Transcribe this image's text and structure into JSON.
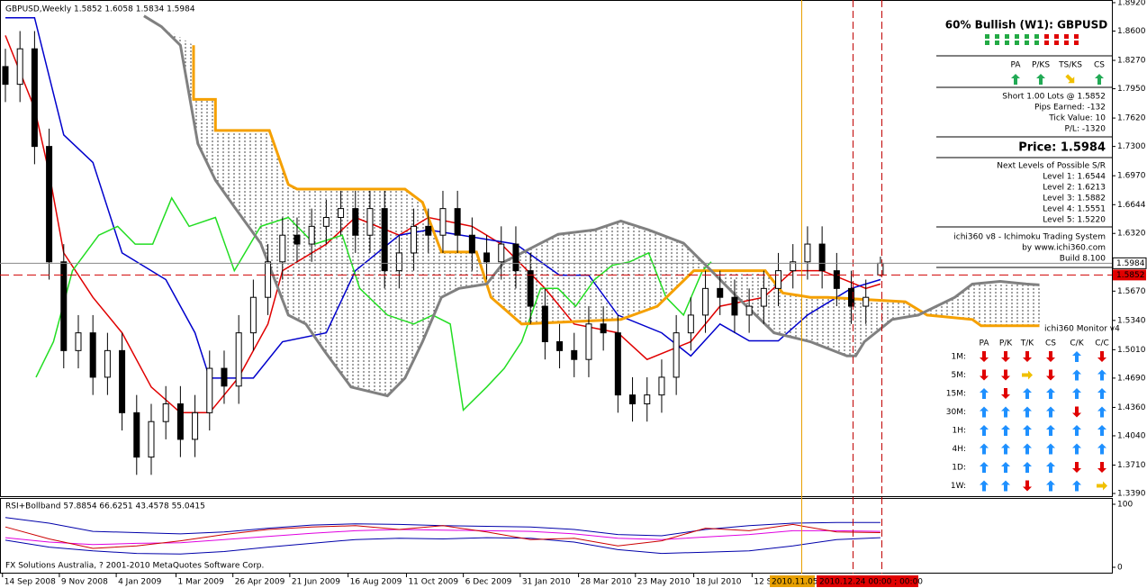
{
  "chart_data": [
    {
      "type": "candlestick",
      "title": "GBPUSD,Weekly  1.5852 1.6058 1.5834 1.5984",
      "open": [
        1.82,
        1.8,
        1.84,
        1.73,
        1.6,
        1.5,
        1.52,
        1.47,
        1.5,
        1.43,
        1.38,
        1.42,
        1.44,
        1.4,
        1.43,
        1.48,
        1.46,
        1.52,
        1.56,
        1.6,
        1.63,
        1.62,
        1.64,
        1.65,
        1.66,
        1.63,
        1.66,
        1.59,
        1.61,
        1.64,
        1.63,
        1.66,
        1.63,
        1.61,
        1.6,
        1.62,
        1.59,
        1.55,
        1.51,
        1.5,
        1.49,
        1.53,
        1.52,
        1.45,
        1.44,
        1.45,
        1.47,
        1.52,
        1.54,
        1.57,
        1.56,
        1.54,
        1.55,
        1.57,
        1.59,
        1.6,
        1.62,
        1.59,
        1.57,
        1.55,
        1.5852
      ],
      "high": [
        1.84,
        1.86,
        1.86,
        1.75,
        1.62,
        1.54,
        1.54,
        1.52,
        1.52,
        1.45,
        1.44,
        1.46,
        1.46,
        1.45,
        1.5,
        1.5,
        1.54,
        1.58,
        1.62,
        1.65,
        1.65,
        1.66,
        1.67,
        1.68,
        1.68,
        1.68,
        1.68,
        1.63,
        1.66,
        1.66,
        1.68,
        1.68,
        1.65,
        1.63,
        1.64,
        1.64,
        1.61,
        1.57,
        1.53,
        1.52,
        1.55,
        1.55,
        1.54,
        1.47,
        1.47,
        1.49,
        1.54,
        1.56,
        1.59,
        1.59,
        1.58,
        1.57,
        1.59,
        1.61,
        1.62,
        1.64,
        1.64,
        1.61,
        1.59,
        1.58,
        1.6058
      ],
      "low": [
        1.78,
        1.78,
        1.71,
        1.58,
        1.48,
        1.48,
        1.45,
        1.45,
        1.41,
        1.36,
        1.36,
        1.4,
        1.38,
        1.38,
        1.41,
        1.44,
        1.44,
        1.5,
        1.54,
        1.58,
        1.6,
        1.6,
        1.62,
        1.63,
        1.61,
        1.61,
        1.57,
        1.57,
        1.59,
        1.61,
        1.61,
        1.61,
        1.59,
        1.58,
        1.58,
        1.57,
        1.53,
        1.49,
        1.48,
        1.47,
        1.47,
        1.5,
        1.43,
        1.42,
        1.42,
        1.43,
        1.45,
        1.5,
        1.52,
        1.54,
        1.52,
        1.52,
        1.53,
        1.55,
        1.57,
        1.58,
        1.57,
        1.55,
        1.53,
        1.53,
        1.5834
      ],
      "close": [
        1.8,
        1.84,
        1.73,
        1.6,
        1.5,
        1.52,
        1.47,
        1.5,
        1.43,
        1.38,
        1.42,
        1.44,
        1.4,
        1.43,
        1.48,
        1.46,
        1.52,
        1.56,
        1.6,
        1.63,
        1.62,
        1.64,
        1.65,
        1.66,
        1.63,
        1.66,
        1.59,
        1.61,
        1.64,
        1.63,
        1.66,
        1.63,
        1.61,
        1.6,
        1.62,
        1.59,
        1.55,
        1.51,
        1.5,
        1.49,
        1.53,
        1.52,
        1.45,
        1.44,
        1.45,
        1.47,
        1.52,
        1.54,
        1.57,
        1.56,
        1.54,
        1.55,
        1.57,
        1.59,
        1.6,
        1.62,
        1.59,
        1.57,
        1.55,
        1.56,
        1.5984
      ],
      "lines": [
        {
          "color": "#e00000",
          "x": [
            0,
            2,
            3,
            4,
            6,
            8,
            10,
            12,
            14,
            16,
            18,
            19,
            22,
            24,
            27,
            29,
            32,
            34,
            37,
            39,
            42,
            44,
            47,
            49,
            52,
            54,
            56,
            59,
            60
          ],
          "values": [
            1.855,
            1.773,
            1.7,
            1.61,
            1.56,
            1.52,
            1.459,
            1.43,
            1.43,
            1.47,
            1.53,
            1.59,
            1.62,
            1.65,
            1.63,
            1.65,
            1.64,
            1.62,
            1.57,
            1.53,
            1.52,
            1.49,
            1.51,
            1.55,
            1.56,
            1.59,
            1.59,
            1.57,
            1.575
          ]
        },
        {
          "color": "#0000cc",
          "x": [
            0,
            2,
            4,
            6,
            8,
            11,
            13,
            14,
            17,
            19,
            22,
            24,
            27,
            29,
            35,
            38,
            40,
            42,
            45,
            47,
            49,
            51,
            53,
            55,
            58,
            60
          ],
          "values": [
            1.875,
            1.875,
            1.743,
            1.712,
            1.61,
            1.58,
            1.52,
            1.469,
            1.469,
            1.51,
            1.52,
            1.59,
            1.63,
            1.636,
            1.62,
            1.585,
            1.585,
            1.54,
            1.52,
            1.494,
            1.53,
            1.511,
            1.511,
            1.54,
            1.57,
            1.58
          ]
        },
        {
          "color": "#22dd22",
          "x": [
            2.1,
            3.3,
            4.6,
            6.4,
            7.7,
            8.9,
            10.1,
            11.4,
            12.6,
            14.4,
            15.7,
            17.5,
            19.4,
            21.2,
            23.1,
            24.3,
            26.2,
            28,
            29.3,
            30.5,
            31.4,
            33,
            34.2,
            35.4,
            36.7,
            37.9,
            39.1,
            40.4,
            41.6,
            42.8,
            44.1,
            45.3,
            46.5,
            47.8,
            48.4
          ],
          "values": [
            1.47,
            1.51,
            1.59,
            1.63,
            1.64,
            1.62,
            1.62,
            1.672,
            1.64,
            1.65,
            1.59,
            1.64,
            1.65,
            1.62,
            1.63,
            1.57,
            1.54,
            1.53,
            1.54,
            1.53,
            1.433,
            1.459,
            1.48,
            1.51,
            1.57,
            1.57,
            1.55,
            1.58,
            1.596,
            1.6,
            1.61,
            1.56,
            1.54,
            1.59,
            1.6
          ]
        },
        {
          "color": "#f5a000",
          "x": [
            12.9,
            12.9,
            14.4,
            14.4,
            18.1,
            19.4,
            20,
            27.4,
            28.6,
            29.9,
            32.3,
            33.3,
            35.4,
            42.2,
            44.7,
            47.2,
            52.1,
            53.3,
            55.2,
            56.4,
            61.7,
            63.2,
            66.3,
            66.9,
            70.9
          ],
          "values": [
            1.844,
            1.783,
            1.783,
            1.748,
            1.748,
            1.687,
            1.682,
            1.682,
            1.667,
            1.611,
            1.611,
            1.56,
            1.53,
            1.535,
            1.55,
            1.59,
            1.59,
            1.565,
            1.56,
            1.56,
            1.555,
            1.54,
            1.535,
            1.528,
            1.528
          ]
        },
        {
          "color": "#808080",
          "x": [
            9.5,
            10.7,
            12,
            13.2,
            14.4,
            15.7,
            17.5,
            19.4,
            20.6,
            21.9,
            23.7,
            26.2,
            27.4,
            28.6,
            29.9,
            31.1,
            33,
            34.2,
            35.4,
            37.9,
            40.4,
            42.2,
            44.1,
            46.5,
            48.4,
            50.2,
            52.7,
            55.2,
            57.7,
            58.3,
            58.9,
            60.8,
            62.6,
            65.1,
            66.3,
            68.2,
            70,
            70.9
          ],
          "values": [
            1.877,
            1.865,
            1.844,
            1.733,
            1.692,
            1.662,
            1.621,
            1.54,
            1.53,
            1.499,
            1.459,
            1.449,
            1.469,
            1.51,
            1.56,
            1.57,
            1.575,
            1.6,
            1.61,
            1.631,
            1.636,
            1.646,
            1.636,
            1.621,
            1.59,
            1.56,
            1.52,
            1.51,
            1.494,
            1.494,
            1.51,
            1.535,
            1.54,
            1.56,
            1.575,
            1.578,
            1.575,
            1.574
          ]
        }
      ],
      "current_price": {
        "value": 1.5984,
        "label": "1.5984"
      },
      "order_price": {
        "value": 1.5852,
        "label": "1.5852"
      },
      "xlim": [
        -0.37,
        75.87
      ],
      "ylim": [
        1.336,
        1.895
      ],
      "yticks": [
        {
          "value": 1.892,
          "label": "1.8920"
        },
        {
          "value": 1.86,
          "label": "1.8600"
        },
        {
          "value": 1.827,
          "label": "1.8270"
        },
        {
          "value": 1.795,
          "label": "1.7950"
        },
        {
          "value": 1.762,
          "label": "1.7620"
        },
        {
          "value": 1.73,
          "label": "1.7300"
        },
        {
          "value": 1.697,
          "label": "1.6970"
        },
        {
          "value": 1.6644,
          "label": "1.6644"
        },
        {
          "value": 1.632,
          "label": "1.6320"
        },
        {
          "value": 1.567,
          "label": "1.5670"
        },
        {
          "value": 1.534,
          "label": "1.5340"
        },
        {
          "value": 1.501,
          "label": "1.5010"
        },
        {
          "value": 1.469,
          "label": "1.4690"
        },
        {
          "value": 1.436,
          "label": "1.4360"
        },
        {
          "value": 1.404,
          "label": "1.4040"
        },
        {
          "value": 1.371,
          "label": "1.3710"
        },
        {
          "value": 1.339,
          "label": "1.3390"
        }
      ],
      "xticks": [
        {
          "value": -0.2,
          "label": "14 Sep 2008"
        },
        {
          "value": 3.7,
          "label": "9 Nov 2008"
        },
        {
          "value": 7.6,
          "label": "4 Jan 2009"
        },
        {
          "value": 11.7,
          "label": "1 Mar 2009"
        },
        {
          "value": 15.6,
          "label": "26 Apr 2009"
        },
        {
          "value": 19.5,
          "label": "21 Jun 2009"
        },
        {
          "value": 23.5,
          "label": "16 Aug 2009"
        },
        {
          "value": 27.5,
          "label": "11 Oct 2009"
        },
        {
          "value": 31.4,
          "label": "6 Dec 2009"
        },
        {
          "value": 35.3,
          "label": "31 Jan 2010"
        },
        {
          "value": 39.3,
          "label": "28 Mar 2010"
        },
        {
          "value": 43.2,
          "label": "23 May 2010"
        },
        {
          "value": 47.2,
          "label": "18 Jul 2010"
        },
        {
          "value": 51.2,
          "label": "12 S"
        }
      ]
    },
    {
      "type": "line",
      "title": "RSI+Bollband 57.8854 66.6251 43.4578 55.0415",
      "x": [
        0,
        3,
        6,
        9,
        12,
        15,
        18,
        21,
        24,
        27,
        30,
        33,
        36,
        39,
        42,
        45,
        48,
        51,
        54,
        57,
        60
      ],
      "series": [
        {
          "color": "#0000aa",
          "values": [
            79,
            70,
            57,
            55,
            53,
            56,
            62,
            67,
            69,
            68,
            66,
            65,
            64,
            60,
            52,
            50,
            60,
            66,
            70,
            71,
            71
          ]
        },
        {
          "color": "#0000aa",
          "values": [
            43,
            32,
            26,
            22,
            21,
            25,
            32,
            38,
            44,
            46,
            45,
            47,
            46,
            40,
            28,
            22,
            24,
            26,
            34,
            44,
            47
          ]
        },
        {
          "color": "#e000e0",
          "values": [
            47,
            40,
            36,
            38,
            39,
            44,
            49,
            54,
            58,
            60,
            59,
            58,
            57,
            53,
            46,
            44,
            48,
            52,
            58,
            58,
            57
          ]
        },
        {
          "color": "#cc0000",
          "values": [
            64,
            45,
            30,
            34,
            42,
            52,
            60,
            64,
            66,
            60,
            66,
            56,
            44,
            46,
            34,
            42,
            62,
            58,
            68,
            56,
            55
          ]
        }
      ],
      "xlim": [
        -0.37,
        75.87
      ],
      "ylim": [
        -10,
        110
      ],
      "yticks": [
        100,
        0
      ]
    }
  ],
  "copyright": "FX Solutions Australia, ? 2001-2010 MetaQuotes Software Corp.",
  "cursor_labels": [
    "2010.11.05",
    "2010.12.24 00:00 ; 00:00"
  ],
  "panel": {
    "signal_title": "60% Bullish (W1): GBPUSD",
    "columns": [
      "PA",
      "P/KS",
      "TS/KS",
      "CS"
    ],
    "trade": [
      "Short 1.00 Lots @ 1.5852",
      "Pips Earned: -132",
      "Tick Value: 10",
      "P/L: -1320"
    ],
    "price": "Price: 1.5984",
    "levels_title": "Next Levels of Possible S/R",
    "levels": [
      "Level 1: 1.6544",
      "Level 2: 1.6213",
      "Level 3: 1.5882",
      "Level 4: 1.5551",
      "Level 5: 1.5220"
    ],
    "credits": [
      "ichi360 v8 - Ichimoku Trading System",
      "by www.ichi360.com",
      "Build 8.100"
    ],
    "monitor": {
      "title": "ichi360 Monitor v4",
      "columns": [
        "PA",
        "P/K",
        "T/K",
        "CS",
        "C/K",
        "C/C"
      ],
      "rows": [
        "1M:",
        "5M:",
        "15M:",
        "30M:",
        "1H:",
        "4H:",
        "1D:",
        "1W:"
      ]
    }
  }
}
